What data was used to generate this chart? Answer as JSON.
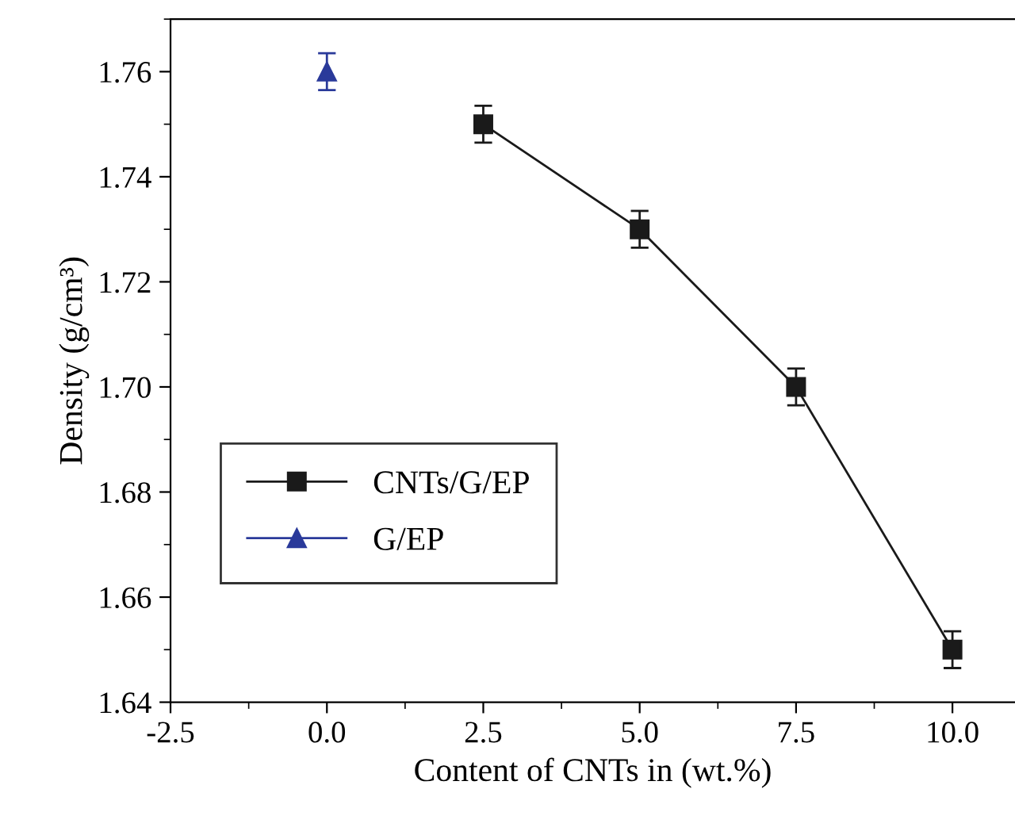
{
  "chart_data": {
    "type": "line",
    "xlabel": "Content of CNTs in (wt.%)",
    "ylabel": "Density (g/cm³)",
    "xlim": [
      -2.5,
      11.0
    ],
    "xticks": [
      {
        "value": -2.5,
        "label": "-2.5"
      },
      {
        "value": 0,
        "label": "0.0"
      },
      {
        "value": 2.5,
        "label": "2.5"
      },
      {
        "value": 5,
        "label": "5.0"
      },
      {
        "value": 7.5,
        "label": "7.5"
      },
      {
        "value": 10,
        "label": "10.0"
      }
    ],
    "ylim": [
      1.64,
      1.77
    ],
    "yticks": [
      {
        "value": 1.64,
        "label": "1.64"
      },
      {
        "value": 1.66,
        "label": "1.66"
      },
      {
        "value": 1.68,
        "label": "1.68"
      },
      {
        "value": 1.7,
        "label": "1.70"
      },
      {
        "value": 1.72,
        "label": "1.72"
      },
      {
        "value": 1.74,
        "label": "1.74"
      },
      {
        "value": 1.76,
        "label": "1.76"
      }
    ],
    "series": [
      {
        "name": "CNTs/G/EP",
        "color": "#1a1a1a",
        "marker": "square",
        "x": [
          2.5,
          5.0,
          7.5,
          10.0
        ],
        "values": [
          1.75,
          1.73,
          1.7,
          1.65
        ],
        "errors": [
          0.0035,
          0.0035,
          0.0035,
          0.0035
        ]
      },
      {
        "name": "G/EP",
        "color": "#2a3a9a",
        "marker": "triangle",
        "x": [
          0.0
        ],
        "values": [
          1.76
        ],
        "errors": [
          0.0035
        ]
      }
    ],
    "legend": "bottom left",
    "grid": false
  }
}
